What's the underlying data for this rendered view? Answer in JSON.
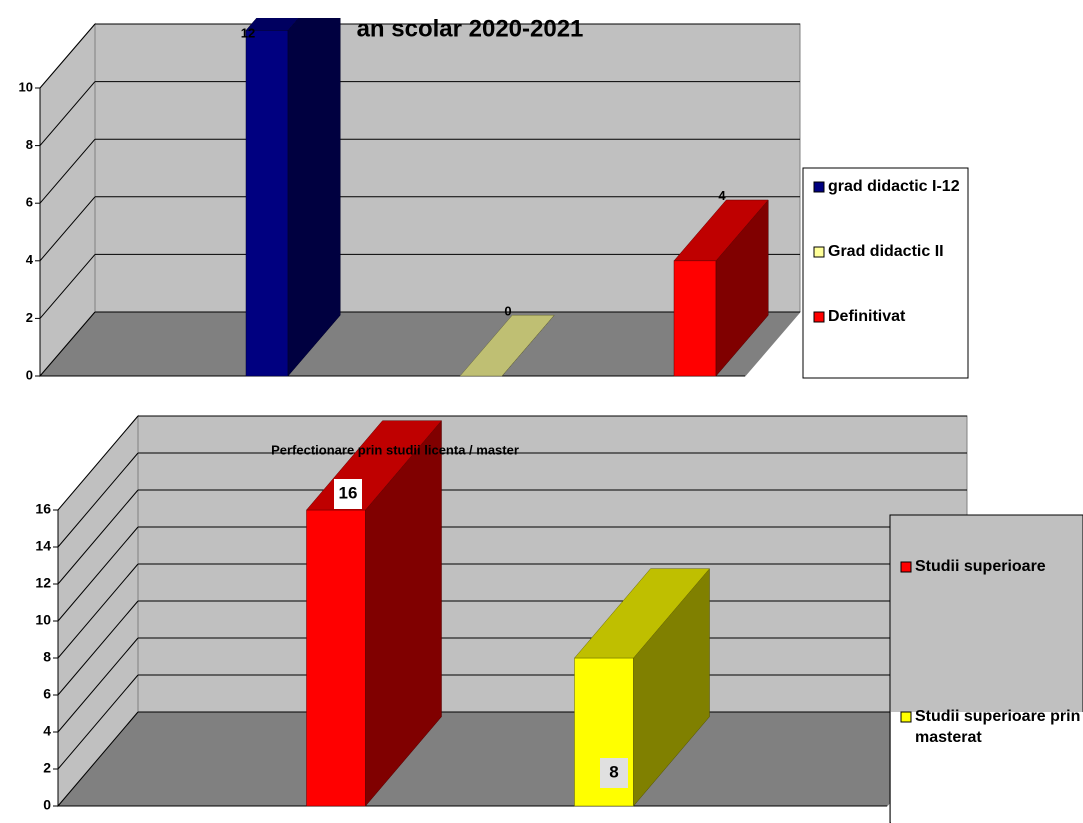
{
  "chart_data": [
    {
      "type": "bar3d",
      "title": "an scolar 2020-2021",
      "series": [
        {
          "name": "grad didactic I-12",
          "color": "#000080",
          "values": [
            12
          ]
        },
        {
          "name": "Grad didactic II",
          "color": "#ffff99",
          "values": [
            0
          ]
        },
        {
          "name": "Definitivat",
          "color": "#ff0000",
          "values": [
            4
          ]
        }
      ],
      "ylim": [
        0,
        10
      ],
      "yticks": [
        0,
        2,
        4,
        6,
        8,
        10
      ],
      "grid": true,
      "legend": "right"
    },
    {
      "type": "bar3d",
      "title": "Perfectionare prin studii licenta / master",
      "series": [
        {
          "name": "Studii superioare",
          "color": "#ff0000",
          "values": [
            16
          ]
        },
        {
          "name": "Studii superioare prin masterat",
          "color": "#ffff00",
          "values": [
            8
          ]
        }
      ],
      "ylim": [
        0,
        16
      ],
      "yticks": [
        0,
        2,
        4,
        6,
        8,
        10,
        12,
        14,
        16
      ],
      "grid": true,
      "legend": "right"
    }
  ]
}
